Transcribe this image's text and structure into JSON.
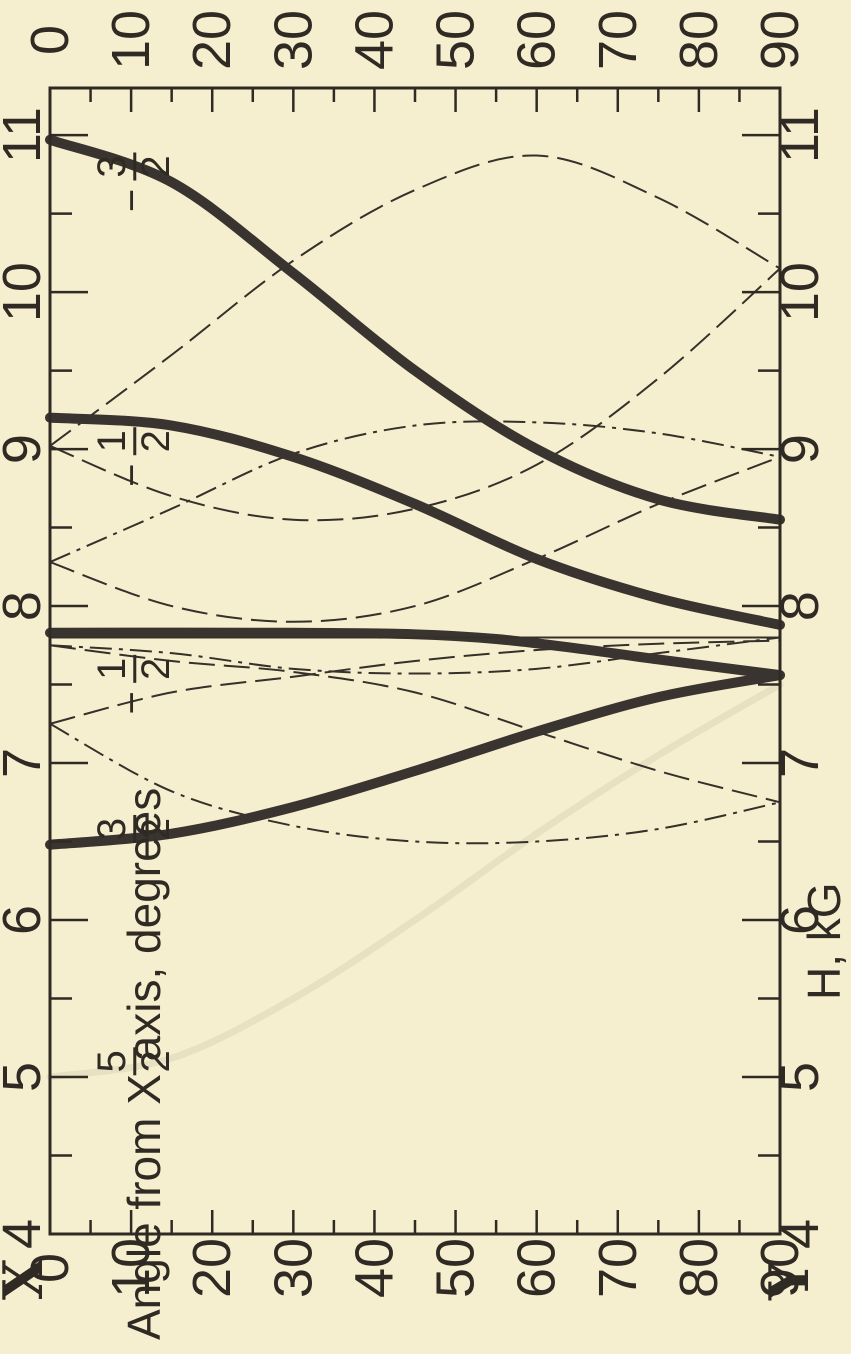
{
  "chart_data": {
    "type": "line",
    "orientation": "rotated-90",
    "field_axis": {
      "label": "H, kG",
      "range": [
        4,
        11.3
      ],
      "ticks": [
        "4",
        "5",
        "6",
        "7",
        "8",
        "9",
        "10",
        "11"
      ]
    },
    "angle_axis": {
      "label": "Angle from X axis, degrees",
      "range": [
        0,
        90
      ],
      "ticks": [
        "0",
        "10",
        "20",
        "30",
        "40",
        "50",
        "60",
        "70",
        "80",
        "90"
      ],
      "start_label": "X",
      "end_label": "Y"
    },
    "top_ticks": [
      "0",
      "10",
      "20",
      "30",
      "40",
      "50",
      "60",
      "70",
      "80",
      "90"
    ],
    "annotations": [
      {
        "id": "m52",
        "num": "5",
        "den": "2",
        "sign": "",
        "field": 5.1,
        "angle": 7
      },
      {
        "id": "m32",
        "num": "3",
        "den": "2",
        "sign": "",
        "field": 6.58,
        "angle": 7
      },
      {
        "id": "m12a",
        "num": "1",
        "den": "2",
        "sign": "−",
        "field": 7.6,
        "angle": 7
      },
      {
        "id": "m12b",
        "num": "1",
        "den": "2",
        "sign": "−",
        "field": 9.05,
        "angle": 7
      },
      {
        "id": "m32b",
        "num": "3",
        "den": "2",
        "sign": "−",
        "field": 10.8,
        "angle": 7
      }
    ],
    "series": [
      {
        "style": "solid",
        "points": [
          [
            0,
            10.97
          ],
          [
            15,
            10.7
          ],
          [
            30,
            10.12
          ],
          [
            45,
            9.5
          ],
          [
            60,
            9.0
          ],
          [
            75,
            8.68
          ],
          [
            90,
            8.55
          ]
        ]
      },
      {
        "style": "solid",
        "points": [
          [
            0,
            9.2
          ],
          [
            15,
            9.15
          ],
          [
            30,
            8.95
          ],
          [
            45,
            8.65
          ],
          [
            60,
            8.3
          ],
          [
            75,
            8.05
          ],
          [
            90,
            7.88
          ]
        ]
      },
      {
        "style": "solid",
        "points": [
          [
            0,
            7.83
          ],
          [
            30,
            7.83
          ],
          [
            45,
            7.82
          ],
          [
            55,
            7.79
          ],
          [
            65,
            7.73
          ],
          [
            75,
            7.66
          ],
          [
            90,
            7.56
          ]
        ]
      },
      {
        "style": "solid",
        "points": [
          [
            0,
            6.48
          ],
          [
            15,
            6.55
          ],
          [
            30,
            6.72
          ],
          [
            45,
            6.95
          ],
          [
            60,
            7.2
          ],
          [
            75,
            7.42
          ],
          [
            90,
            7.56
          ]
        ]
      },
      {
        "style": "faint",
        "points": [
          [
            0,
            5.0
          ],
          [
            15,
            5.12
          ],
          [
            30,
            5.5
          ],
          [
            45,
            6.0
          ],
          [
            60,
            6.55
          ],
          [
            75,
            7.05
          ],
          [
            90,
            7.5
          ]
        ]
      },
      {
        "style": "dashed",
        "points": [
          [
            0,
            8.28
          ],
          [
            15,
            8.0
          ],
          [
            30,
            7.9
          ],
          [
            45,
            8.0
          ],
          [
            60,
            8.3
          ],
          [
            75,
            8.65
          ],
          [
            90,
            8.95
          ]
        ]
      },
      {
        "style": "dashed",
        "points": [
          [
            0,
            9.02
          ],
          [
            15,
            8.7
          ],
          [
            30,
            8.55
          ],
          [
            45,
            8.62
          ],
          [
            60,
            8.9
          ],
          [
            75,
            9.45
          ],
          [
            90,
            10.15
          ]
        ]
      },
      {
        "style": "dashed",
        "points": [
          [
            0,
            9.02
          ],
          [
            15,
            9.6
          ],
          [
            30,
            10.2
          ],
          [
            45,
            10.65
          ],
          [
            60,
            10.87
          ],
          [
            75,
            10.6
          ],
          [
            90,
            10.15
          ]
        ]
      },
      {
        "style": "dashed",
        "points": [
          [
            0,
            7.75
          ],
          [
            15,
            7.65
          ],
          [
            30,
            7.58
          ],
          [
            45,
            7.45
          ],
          [
            60,
            7.2
          ],
          [
            75,
            6.95
          ],
          [
            90,
            6.75
          ]
        ]
      },
      {
        "style": "dashed",
        "points": [
          [
            0,
            7.25
          ],
          [
            15,
            7.45
          ],
          [
            30,
            7.55
          ],
          [
            45,
            7.65
          ],
          [
            60,
            7.72
          ],
          [
            75,
            7.76
          ],
          [
            90,
            7.78
          ]
        ]
      },
      {
        "style": "dashdot",
        "points": [
          [
            0,
            8.28
          ],
          [
            15,
            8.62
          ],
          [
            30,
            8.97
          ],
          [
            45,
            9.15
          ],
          [
            60,
            9.17
          ],
          [
            75,
            9.1
          ],
          [
            90,
            8.95
          ]
        ]
      },
      {
        "style": "dashdot",
        "points": [
          [
            0,
            7.25
          ],
          [
            15,
            6.82
          ],
          [
            30,
            6.6
          ],
          [
            45,
            6.5
          ],
          [
            60,
            6.5
          ],
          [
            75,
            6.58
          ],
          [
            90,
            6.75
          ]
        ]
      },
      {
        "style": "dashdot",
        "points": [
          [
            0,
            7.75
          ],
          [
            15,
            7.7
          ],
          [
            30,
            7.6
          ],
          [
            45,
            7.57
          ],
          [
            60,
            7.6
          ],
          [
            75,
            7.7
          ],
          [
            90,
            7.8
          ]
        ]
      }
    ],
    "reference_lines": [
      {
        "field": 7.8
      }
    ]
  }
}
